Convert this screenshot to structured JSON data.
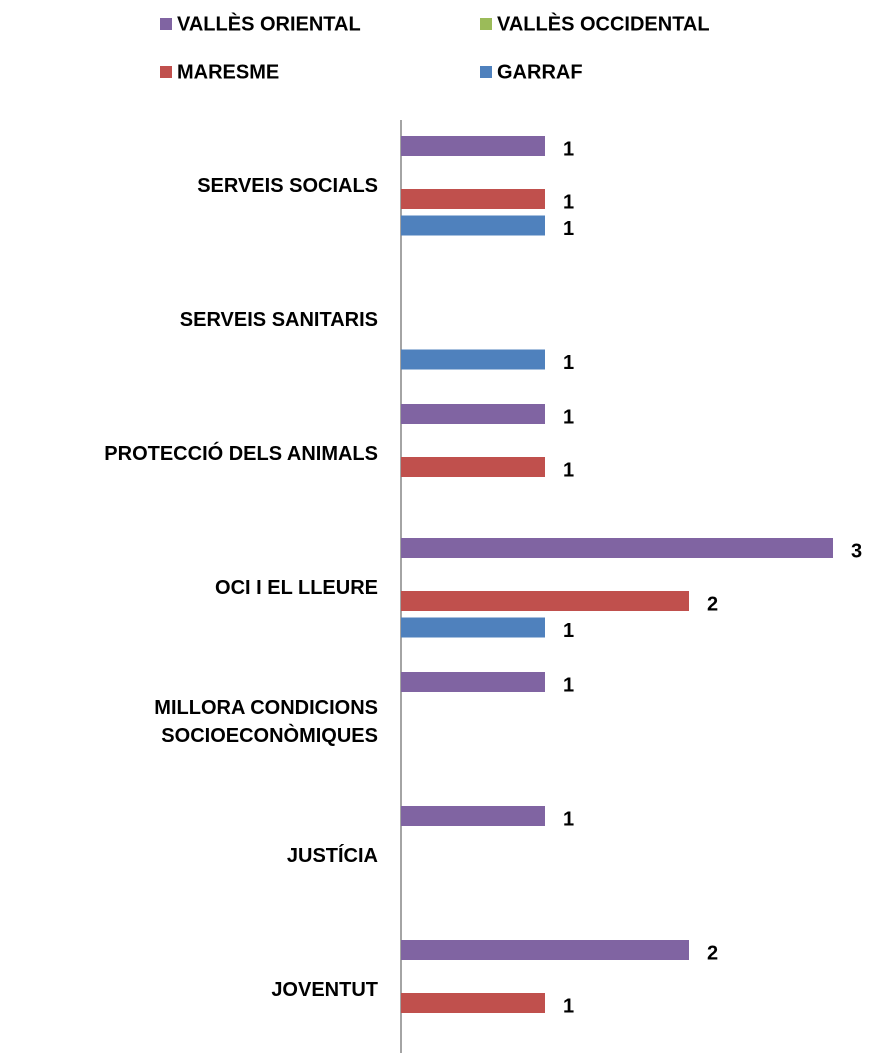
{
  "chart_data": {
    "type": "hbar",
    "categories": [
      "SERVEIS SOCIALS",
      "SERVEIS SANITARIS",
      "PROTECCIÓ DELS ANIMALS",
      "OCI I EL LLEURE",
      "MILLORA CONDICIONS SOCIOECONÒMIQUES",
      "JUSTÍCIA",
      "JOVENTUT"
    ],
    "series": [
      {
        "name": "VALLÈS ORIENTAL",
        "color": "#8064a2",
        "values": [
          1,
          null,
          1,
          3,
          1,
          1,
          2
        ]
      },
      {
        "name": "VALLÈS OCCIDENTAL",
        "color": "#9bbb59",
        "values": [
          null,
          null,
          null,
          null,
          null,
          null,
          null
        ]
      },
      {
        "name": "MARESME",
        "color": "#c0504d",
        "values": [
          1,
          null,
          1,
          2,
          null,
          null,
          1
        ]
      },
      {
        "name": "GARRAF",
        "color": "#4f81bd",
        "values": [
          1,
          1,
          null,
          1,
          null,
          null,
          null
        ]
      }
    ],
    "legend": "top"
  }
}
